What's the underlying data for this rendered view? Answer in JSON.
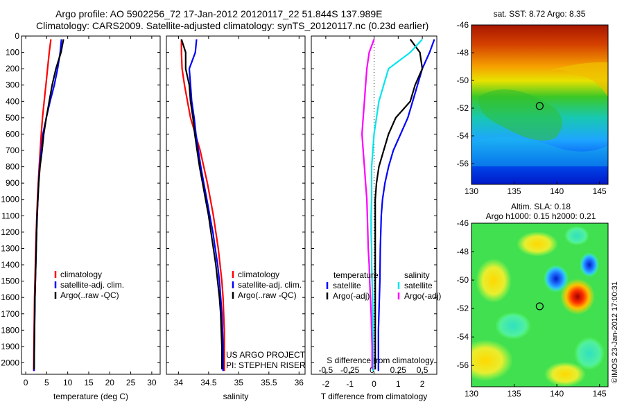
{
  "title": {
    "line1": "Argo profile: AO 5902256_72 17-Jan-2012 20120117_22 51.844S 137.989E",
    "line2": "Climatology: CARS2009. Satellite-adjusted climatology: synTS_20120117.nc (0.23d earlier)"
  },
  "credit": "©IMOS 23-Jan-2012 17:00:31",
  "project": {
    "line1": "US ARGO PROJECT",
    "line2": "PI: STEPHEN RISER"
  },
  "colors": {
    "climatology": "#ff0000",
    "satellite": "#0000ff",
    "argo": "#000000",
    "sal_satellite": "#00e5ee",
    "sal_argo": "#ff00ff"
  },
  "chart_data": [
    {
      "id": "temperature",
      "type": "line",
      "xlabel": "temperature (deg C)",
      "ylabel": "",
      "xlim": [
        -1,
        32
      ],
      "ylim": [
        2070,
        0
      ],
      "xticks": [
        0,
        5,
        10,
        15,
        20,
        25,
        30
      ],
      "yticks": [
        0,
        100,
        200,
        300,
        400,
        500,
        600,
        700,
        800,
        900,
        1000,
        1100,
        1200,
        1300,
        1400,
        1500,
        1600,
        1700,
        1800,
        1900,
        2000
      ],
      "legend": [
        "climatology",
        "satellite-adj. clim.",
        "Argo(..raw -QC)"
      ],
      "legend_placement": "lower-center",
      "series": [
        {
          "name": "climatology",
          "color": "#ff0000",
          "x": [
            6.0,
            5.6,
            5.2,
            4.8,
            4.4,
            4.0,
            3.7,
            3.45,
            3.2,
            3.0,
            2.8,
            2.65,
            2.5,
            2.4,
            2.3,
            2.2,
            2.1,
            2.05,
            2.0,
            1.95,
            1.9
          ],
          "y": [
            20,
            100,
            200,
            300,
            400,
            500,
            600,
            700,
            800,
            900,
            1000,
            1100,
            1200,
            1300,
            1400,
            1500,
            1600,
            1700,
            1800,
            1900,
            2050
          ]
        },
        {
          "name": "satellite-adj. clim.",
          "color": "#0000ff",
          "x": [
            8.5,
            8.2,
            7.6,
            6.8,
            5.8,
            4.9,
            4.1,
            3.7,
            3.3,
            3.1,
            2.9,
            2.75,
            2.6,
            2.5,
            2.4,
            2.3,
            2.2,
            2.15,
            2.1,
            2.05,
            2.0
          ],
          "y": [
            20,
            100,
            200,
            300,
            400,
            500,
            600,
            700,
            800,
            900,
            1000,
            1100,
            1200,
            1300,
            1400,
            1500,
            1600,
            1700,
            1800,
            1900,
            2050
          ]
        },
        {
          "name": "Argo(..raw -QC)",
          "color": "#000000",
          "x": [
            9.0,
            8.4,
            7.2,
            6.3,
            5.6,
            4.9,
            4.3,
            3.9,
            3.4,
            3.1,
            2.9,
            2.7,
            2.6,
            2.5,
            2.4,
            2.3,
            2.2,
            2.15,
            2.1,
            2.05,
            2.0
          ],
          "y": [
            20,
            100,
            200,
            300,
            400,
            500,
            600,
            700,
            800,
            900,
            1000,
            1100,
            1200,
            1300,
            1400,
            1500,
            1600,
            1700,
            1800,
            1900,
            2040
          ]
        }
      ]
    },
    {
      "id": "salinity",
      "type": "line",
      "xlabel": "salinity",
      "ylabel": "",
      "xlim": [
        33.8,
        36.1
      ],
      "ylim": [
        2070,
        0
      ],
      "xticks": [
        34,
        34.5,
        35,
        35.5,
        36
      ],
      "xticklabels": [
        "34",
        "34.5",
        "35",
        "35.5",
        "36"
      ],
      "legend": [
        "climatology",
        "satellite-adj. clim.",
        "Argo(..raw -QC)"
      ],
      "legend_placement": "lower-right",
      "series": [
        {
          "name": "climatology",
          "color": "#ff0000",
          "x": [
            34.05,
            34.05,
            34.06,
            34.1,
            34.15,
            34.2,
            34.28,
            34.36,
            34.42,
            34.48,
            34.53,
            34.58,
            34.62,
            34.66,
            34.69,
            34.72,
            34.74,
            34.75,
            34.76,
            34.76,
            34.76
          ],
          "y": [
            20,
            100,
            200,
            300,
            400,
            500,
            600,
            700,
            800,
            900,
            1000,
            1100,
            1200,
            1300,
            1400,
            1500,
            1600,
            1700,
            1800,
            1900,
            2050
          ]
        },
        {
          "name": "satellite-adj. clim.",
          "color": "#0000ff",
          "x": [
            34.3,
            34.28,
            34.18,
            34.2,
            34.22,
            34.26,
            34.29,
            34.33,
            34.37,
            34.42,
            34.47,
            34.52,
            34.57,
            34.61,
            34.65,
            34.68,
            34.7,
            34.72,
            34.73,
            34.74,
            34.74
          ],
          "y": [
            20,
            100,
            200,
            300,
            400,
            500,
            600,
            700,
            800,
            900,
            1000,
            1100,
            1200,
            1300,
            1400,
            1500,
            1600,
            1700,
            1800,
            1900,
            2050
          ]
        },
        {
          "name": "Argo(..raw -QC)",
          "color": "#000000",
          "x": [
            34.05,
            34.12,
            34.12,
            34.18,
            34.2,
            34.24,
            34.27,
            34.31,
            34.35,
            34.4,
            34.45,
            34.5,
            34.54,
            34.58,
            34.62,
            34.65,
            34.68,
            34.7,
            34.71,
            34.72,
            34.72
          ],
          "y": [
            20,
            100,
            200,
            300,
            400,
            500,
            600,
            700,
            800,
            900,
            1000,
            1100,
            1200,
            1300,
            1400,
            1500,
            1600,
            1700,
            1800,
            1900,
            2040
          ]
        }
      ]
    },
    {
      "id": "difference",
      "type": "line",
      "xlabel": "T difference from climatology",
      "xlabel_top": "S difference from climatology",
      "xlim": [
        -2.6,
        2.6
      ],
      "ylim": [
        2070,
        0
      ],
      "xticks": [
        -2,
        -1,
        0,
        1,
        2
      ],
      "s_ticklabels": [
        "-0.5",
        "-0.25",
        "0",
        "0.25",
        "0.5"
      ],
      "legend_groups": [
        "temperature",
        "salinity"
      ],
      "legend": [
        "satellite",
        "Argo(-adj)",
        "satellite",
        "Argo(-adj)"
      ],
      "legend_placement": "lower-center",
      "series": [
        {
          "name": "temperature satellite",
          "color": "#0000ff",
          "x": [
            2.5,
            2.3,
            2.0,
            1.8,
            1.6,
            1.4,
            1.1,
            0.8,
            0.6,
            0.45,
            0.35,
            0.3,
            0.28,
            0.26,
            0.25,
            0.24,
            0.22,
            0.2,
            0.18,
            0.18,
            0.18
          ],
          "y": [
            20,
            100,
            200,
            300,
            400,
            500,
            600,
            700,
            800,
            900,
            1000,
            1100,
            1200,
            1300,
            1400,
            1500,
            1600,
            1700,
            1800,
            1900,
            2050
          ]
        },
        {
          "name": "temperature Argo(-adj)",
          "color": "#000000",
          "x": [
            1.5,
            1.9,
            2.0,
            1.7,
            1.5,
            0.9,
            0.6,
            0.4,
            0.2,
            0.1,
            0.05,
            0.05,
            0.05,
            0.05,
            0.05,
            0.05,
            0.05,
            0.05,
            0.05,
            0.05,
            0.05
          ],
          "y": [
            20,
            100,
            200,
            300,
            400,
            500,
            600,
            700,
            800,
            900,
            1000,
            1100,
            1200,
            1300,
            1400,
            1500,
            1600,
            1700,
            1800,
            1900,
            2040
          ]
        },
        {
          "name": "salinity satellite",
          "color": "#00e5ee",
          "x": [
            2.0,
            1.5,
            0.6,
            0.4,
            0.2,
            0.1,
            0.0,
            -0.05,
            -0.1,
            -0.1,
            -0.1,
            -0.12,
            -0.12,
            -0.1,
            -0.1,
            -0.08,
            -0.06,
            -0.05,
            -0.05,
            -0.04,
            -0.04
          ],
          "y": [
            20,
            100,
            200,
            300,
            400,
            500,
            600,
            700,
            800,
            900,
            1000,
            1100,
            1200,
            1300,
            1400,
            1500,
            1600,
            1700,
            1800,
            1900,
            2050
          ]
        },
        {
          "name": "salinity Argo(-adj)",
          "color": "#ff00ff",
          "x": [
            0.0,
            -0.2,
            -0.3,
            -0.35,
            -0.4,
            -0.45,
            -0.5,
            -0.45,
            -0.4,
            -0.35,
            -0.3,
            -0.28,
            -0.26,
            -0.24,
            -0.2,
            -0.18,
            -0.15,
            -0.12,
            -0.1,
            -0.08,
            -0.08
          ],
          "y": [
            20,
            100,
            200,
            300,
            400,
            500,
            600,
            700,
            800,
            900,
            1000,
            1100,
            1200,
            1300,
            1400,
            1500,
            1600,
            1700,
            1800,
            1900,
            2040
          ]
        }
      ]
    },
    {
      "id": "sst_map",
      "type": "heatmap",
      "title": "sat. SST: 8.72 Argo: 8.35",
      "xlim": [
        130,
        146
      ],
      "ylim": [
        -57.5,
        -46
      ],
      "xticks": [
        130,
        135,
        140,
        145
      ],
      "yticks": [
        -46,
        -48,
        -50,
        -52,
        -54,
        -56
      ],
      "marker": {
        "lon": 137.989,
        "lat": -51.844
      }
    },
    {
      "id": "sla_map",
      "type": "heatmap",
      "title": "Altim. SLA: 0.18",
      "subtitle": "Argo h1000: 0.15 h2000: 0.21",
      "xlim": [
        130,
        146
      ],
      "ylim": [
        -57.5,
        -46
      ],
      "xticks": [
        130,
        135,
        140,
        145
      ],
      "yticks": [
        -46,
        -48,
        -50,
        -52,
        -54,
        -56
      ],
      "marker": {
        "lon": 137.989,
        "lat": -51.844
      }
    }
  ]
}
